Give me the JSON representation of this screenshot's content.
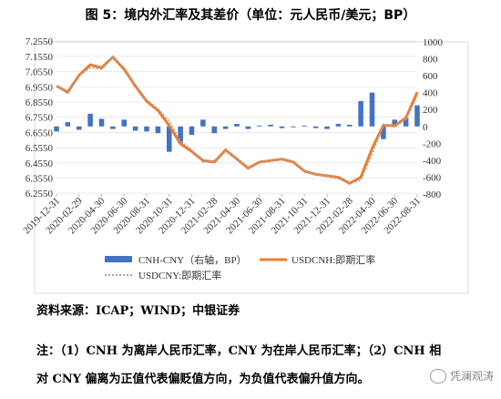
{
  "figure_title": "图 5：境内外汇率及其差价（单位：元人民币/美元；BP）",
  "source_text": "资料来源：ICAP；WIND；中银证券",
  "note_line1": "注：（1）CNH 为离岸人民币汇率，CNY 为在岸人民币汇率；（2）CNH 相",
  "note_line2": "对 CNY 偏离为正值代表偏贬值方向，为负值代表偏升值方向。",
  "watermark": "凭澜观涛",
  "colors": {
    "bar": "#4472c4",
    "cnh_line": "#ed7d31",
    "cny_line": "#a5a5a5"
  },
  "chart_data": {
    "type": "bar+line",
    "left_axis": {
      "ylim": [
        6.25,
        7.25
      ],
      "ticks": [
        "7.2550",
        "7.1550",
        "7.0550",
        "6.9550",
        "6.8550",
        "6.7550",
        "6.6550",
        "6.5550",
        "6.4550",
        "6.3550",
        "6.2550"
      ]
    },
    "right_axis": {
      "ylim": [
        -800,
        1000
      ],
      "ticks": [
        "1000",
        "800",
        "600",
        "400",
        "200",
        "0",
        "-200",
        "-400",
        "-600",
        "-800"
      ]
    },
    "x_tick_labels": [
      "2019-12-31",
      "2020-02-29",
      "2020-04-30",
      "2020-06-30",
      "2020-08-31",
      "2020-10-31",
      "2020-12-31",
      "2021-02-28",
      "2021-04-30",
      "2021-06-30",
      "2021-08-31",
      "2021-10-31",
      "2021-12-31",
      "2022-02-28",
      "2022-04-30",
      "2022-06-30",
      "2022-08-31"
    ],
    "legend": [
      "CNH-CNY（右轴，BP）",
      "USDCNH:即期汇率",
      "USDCNY:即期汇率"
    ],
    "x": [
      "2019-12-31",
      "2020-01-31",
      "2020-02-29",
      "2020-03-31",
      "2020-04-30",
      "2020-05-31",
      "2020-06-30",
      "2020-07-31",
      "2020-08-31",
      "2020-09-30",
      "2020-10-31",
      "2020-11-30",
      "2020-12-31",
      "2021-01-31",
      "2021-02-28",
      "2021-03-31",
      "2021-04-30",
      "2021-05-31",
      "2021-06-30",
      "2021-07-31",
      "2021-08-31",
      "2021-09-30",
      "2021-10-31",
      "2021-11-30",
      "2021-12-31",
      "2022-01-31",
      "2022-02-28",
      "2022-03-31",
      "2022-04-30",
      "2022-05-31",
      "2022-06-30",
      "2022-07-31",
      "2022-08-31"
    ],
    "series": [
      {
        "name": "CNH-CNY（右轴，BP）",
        "type": "bar",
        "axis": "right",
        "values": [
          -60,
          50,
          -40,
          150,
          90,
          -30,
          80,
          -50,
          -60,
          -80,
          -300,
          -200,
          -100,
          80,
          -80,
          -30,
          30,
          -30,
          10,
          20,
          -20,
          -10,
          10,
          -20,
          -30,
          30,
          20,
          300,
          400,
          -150,
          80,
          100,
          250
        ]
      },
      {
        "name": "USDCNH:即期汇率",
        "type": "line",
        "axis": "left",
        "values": [
          6.96,
          6.92,
          7.03,
          7.1,
          7.08,
          7.15,
          7.07,
          6.96,
          6.86,
          6.8,
          6.7,
          6.58,
          6.53,
          6.47,
          6.46,
          6.54,
          6.48,
          6.42,
          6.46,
          6.47,
          6.48,
          6.46,
          6.4,
          6.38,
          6.37,
          6.36,
          6.32,
          6.36,
          6.55,
          6.7,
          6.7,
          6.75,
          6.92
        ]
      },
      {
        "name": "USDCNY:即期汇率",
        "type": "line",
        "axis": "left",
        "values": [
          6.96,
          6.91,
          7.03,
          7.08,
          7.07,
          7.15,
          7.06,
          6.97,
          6.87,
          6.81,
          6.73,
          6.6,
          6.54,
          6.46,
          6.47,
          6.54,
          6.48,
          6.42,
          6.46,
          6.47,
          6.48,
          6.46,
          6.4,
          6.38,
          6.37,
          6.35,
          6.32,
          6.34,
          6.51,
          6.71,
          6.69,
          6.74,
          6.89
        ]
      }
    ]
  }
}
